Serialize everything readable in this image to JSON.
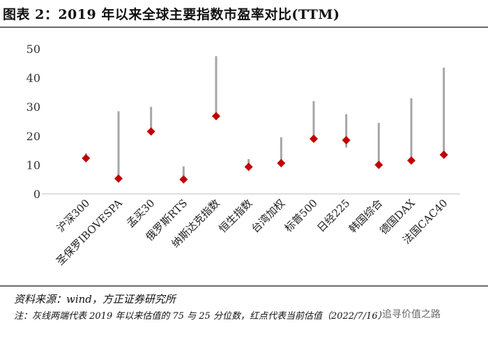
{
  "header": {
    "title": "图表 2：2019 年以来全球主要指数市盈率对比(TTM)"
  },
  "footer": {
    "source": "资料来源：wind，方正证券研究所",
    "note": "注：灰线两端代表 2019 年以来估值的 75 与 25 分位数，红点代表当前估值（2022/7/16）",
    "watermark": "追寻价值之路"
  },
  "chart_data": {
    "type": "range-dot",
    "title": "图表 2：2019 年以来全球主要指数市盈率对比(TTM)",
    "categories": [
      "沪深300",
      "圣保罗IBOVESPA",
      "孟买30",
      "俄罗斯RTS",
      "纳斯达克指数",
      "恒生指数",
      "台湾加权",
      "标普500",
      "日经225",
      "韩国综合",
      "德国DAX",
      "法国CAC40"
    ],
    "series": [
      {
        "name": "25分位数",
        "values": [
          11.5,
          5,
          21,
          4.5,
          26.5,
          8.5,
          10,
          19,
          16,
          9.5,
          11.5,
          13
        ]
      },
      {
        "name": "75分位数",
        "values": [
          14,
          28.5,
          30,
          9.5,
          47.5,
          12,
          19.5,
          32,
          27.5,
          24.5,
          33,
          43.5
        ]
      },
      {
        "name": "当前估值",
        "values": [
          12.3,
          5.3,
          21.5,
          5,
          26.8,
          9.3,
          10.6,
          19,
          18.5,
          10,
          11.5,
          13.5
        ]
      }
    ],
    "yticks": [
      0,
      10,
      20,
      30,
      40,
      50
    ],
    "ylim": [
      0,
      50
    ],
    "grid": false,
    "colors": {
      "range": "#a6a6a6",
      "dot": "#c00000"
    }
  }
}
